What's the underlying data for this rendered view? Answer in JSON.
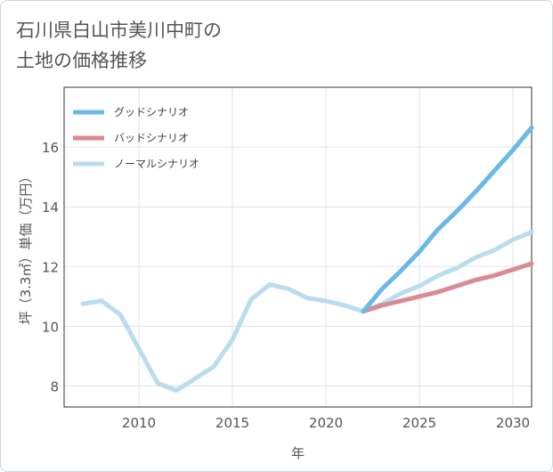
{
  "title_lines": [
    "石川県白山市美川中町の",
    "土地の価格推移"
  ],
  "chart_data": {
    "type": "line",
    "xlabel": "年",
    "ylabel": "坪（3.3㎡）単価（万円）",
    "xlim": [
      2006,
      2031
    ],
    "ylim": [
      7.3,
      18
    ],
    "x_ticks": [
      2010,
      2015,
      2020,
      2025,
      2030
    ],
    "y_ticks": [
      8,
      10,
      12,
      14,
      16
    ],
    "grid": true,
    "legend_position": "top-left",
    "series": [
      {
        "name": "グッドシナリオ",
        "color": "#6ab8ea",
        "x": [
          2022,
          2023,
          2024,
          2025,
          2026,
          2027,
          2028,
          2029,
          2030,
          2031
        ],
        "y": [
          10.5,
          11.25,
          11.85,
          12.5,
          13.25,
          13.85,
          14.5,
          15.2,
          15.9,
          16.65
        ]
      },
      {
        "name": "バッドシナリオ",
        "color": "#d98a93",
        "x": [
          2022,
          2023,
          2024,
          2025,
          2026,
          2027,
          2028,
          2029,
          2030,
          2031
        ],
        "y": [
          10.5,
          10.7,
          10.85,
          11.0,
          11.15,
          11.35,
          11.55,
          11.7,
          11.9,
          12.1
        ]
      },
      {
        "name": "ノーマルシナリオ",
        "color": "#b9dcef",
        "x": [
          2007,
          2008,
          2009,
          2010,
          2011,
          2012,
          2013,
          2014,
          2015,
          2016,
          2017,
          2018,
          2019,
          2020,
          2021,
          2022,
          2023,
          2024,
          2025,
          2026,
          2027,
          2028,
          2029,
          2030,
          2031
        ],
        "y": [
          10.75,
          10.85,
          10.4,
          9.25,
          8.1,
          7.85,
          8.25,
          8.65,
          9.55,
          10.9,
          11.4,
          11.25,
          10.95,
          10.85,
          10.7,
          10.5,
          10.75,
          11.1,
          11.35,
          11.7,
          11.95,
          12.3,
          12.55,
          12.9,
          13.15
        ]
      }
    ]
  }
}
